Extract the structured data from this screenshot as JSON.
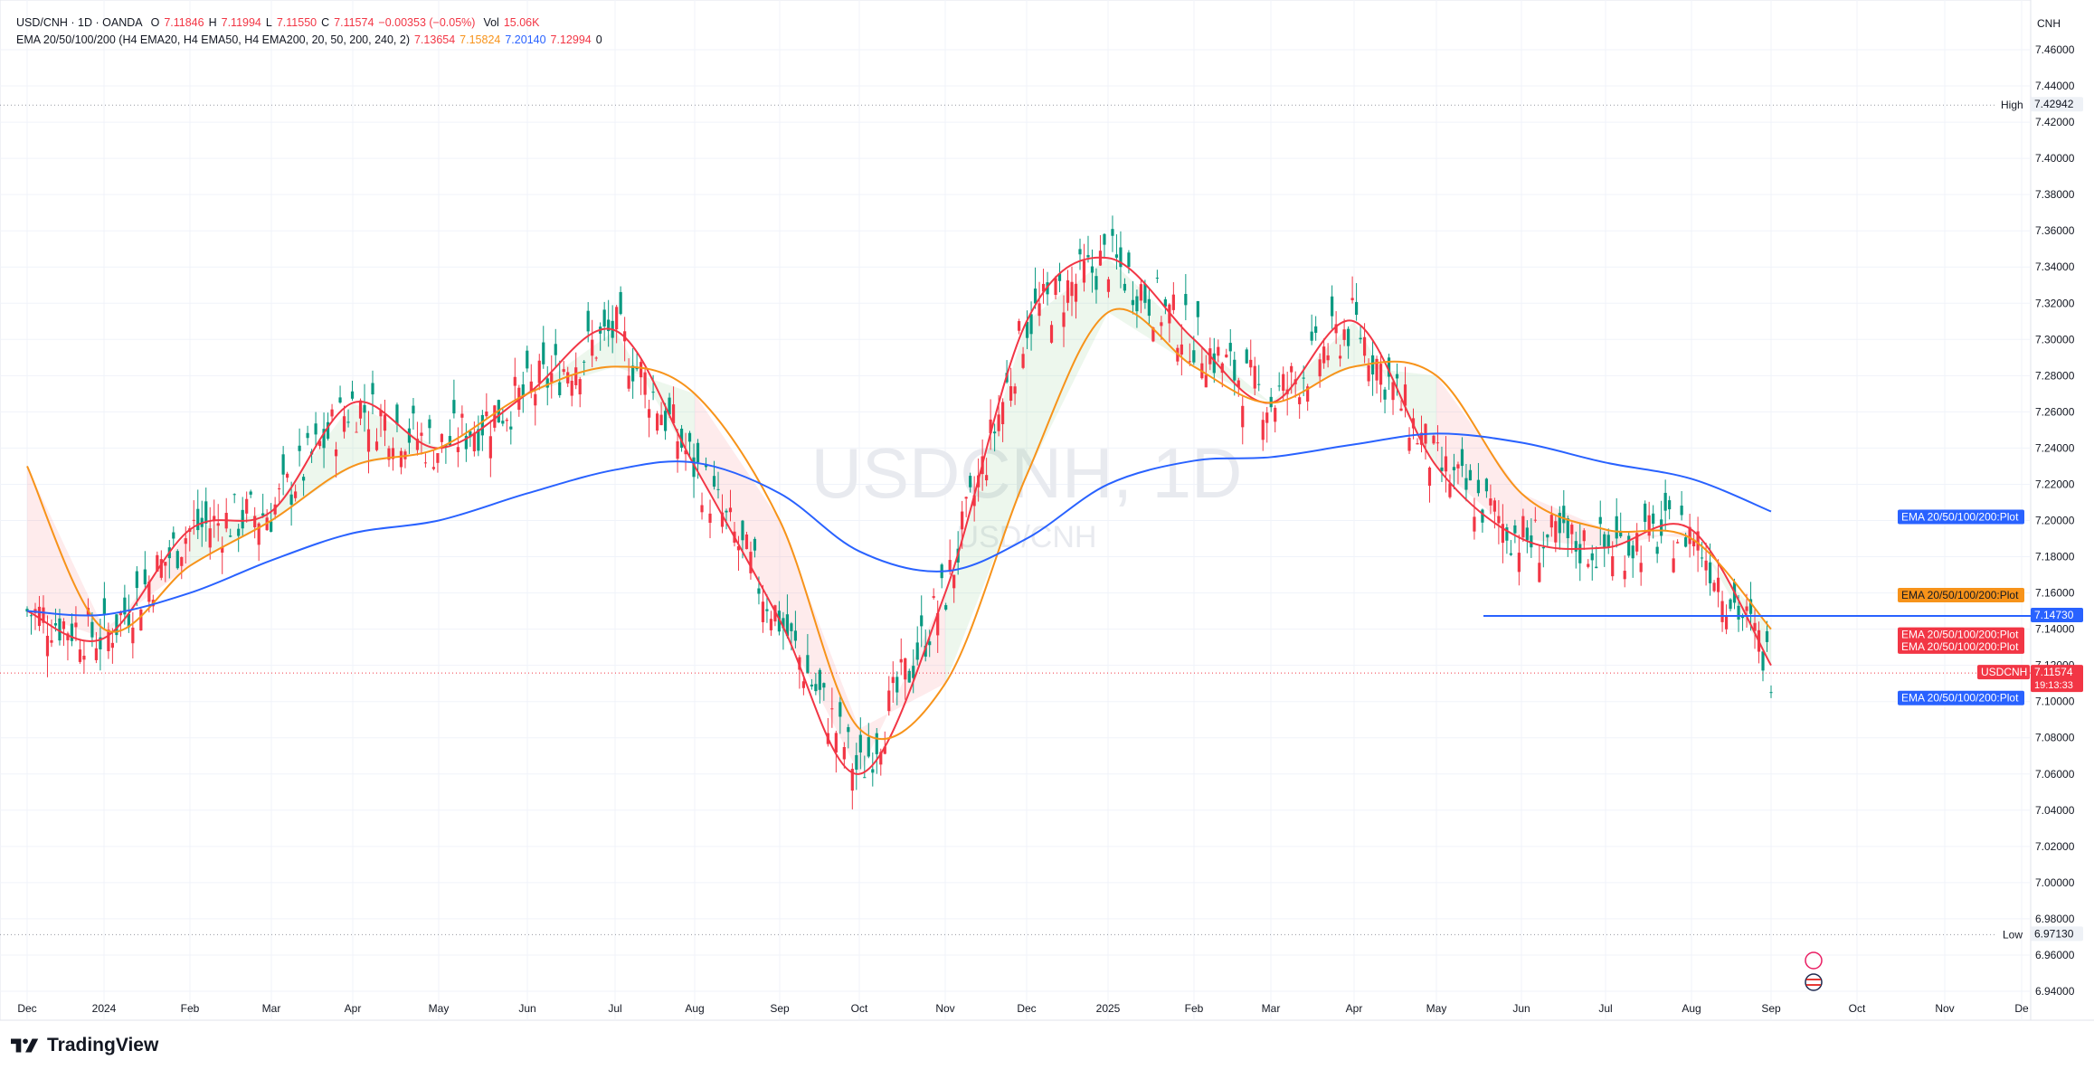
{
  "legend": {
    "symbol": "USD/CNH · 1D · OANDA",
    "open_label": "O",
    "open": "7.11846",
    "high_label": "H",
    "high": "7.11994",
    "low_label": "L",
    "low": "7.11550",
    "close_label": "C",
    "close": "7.11574",
    "change": "−0.00353 (−0.05%)",
    "volume_label": "Vol",
    "volume": "15.06K",
    "indicator": "EMA 20/50/100/200 (H4 EMA20, H4 EMA50, H4 EMA200, 20, 50, 200, 240, 2)",
    "ema20": "7.13654",
    "ema50": "7.15824",
    "ema200": "7.20140",
    "ema_extra": "7.12994",
    "ema_zero": "0"
  },
  "watermark": {
    "main": "USDCNH, 1D",
    "sub": "USD/CNH"
  },
  "currency": "CNH",
  "price_axis": {
    "ticks": [
      "7.46000",
      "7.44000",
      "7.42000",
      "7.40000",
      "7.38000",
      "7.36000",
      "7.34000",
      "7.32000",
      "7.30000",
      "7.28000",
      "7.26000",
      "7.24000",
      "7.22000",
      "7.20000",
      "7.18000",
      "7.16000",
      "7.14000",
      "7.12000",
      "7.10000",
      "7.08000",
      "7.06000",
      "7.04000",
      "7.02000",
      "7.00000",
      "6.98000",
      "6.96000",
      "6.94000"
    ]
  },
  "time_axis": {
    "labels": [
      "Dec",
      "2024",
      "Feb",
      "Mar",
      "Apr",
      "May",
      "Jun",
      "Jul",
      "Aug",
      "Sep",
      "Oct",
      "Nov",
      "Dec",
      "2025",
      "Feb",
      "Mar",
      "Apr",
      "May",
      "Jun",
      "Jul",
      "Aug",
      "Sep",
      "Oct",
      "Nov",
      "De"
    ]
  },
  "markers": {
    "high_label": "High",
    "high_value": "7.42942",
    "low_label": "Low",
    "low_value": "6.97130",
    "hline_value": "7.14730",
    "current_symbol": "USDCNH",
    "current_value": "7.11574",
    "countdown": "19:13:33",
    "ema_tag_blue_top": "EMA 20/50/100/200:Plot",
    "ema_tag_orange": "EMA 20/50/100/200:Plot",
    "ema_tag_red_1": "EMA 20/50/100/200:Plot",
    "ema_tag_red_2": "EMA 20/50/100/200:Plot",
    "ema_tag_blue_bottom": "EMA 20/50/100/200:Plot"
  },
  "chart_data": {
    "type": "line",
    "title": "USD/CNH · 1D · OANDA",
    "x": [
      "Dec",
      "2024",
      "Feb",
      "Mar",
      "Apr",
      "May",
      "Jun",
      "Jul",
      "Aug",
      "Sep",
      "Oct",
      "Nov",
      "Dec",
      "2025",
      "Feb",
      "Mar",
      "Apr",
      "May",
      "Jun",
      "Jul",
      "Aug",
      "Sep"
    ],
    "ylim": [
      6.93,
      7.47
    ],
    "series": [
      {
        "values": [
          7.15,
          7.135,
          7.195,
          7.205,
          7.265,
          7.24,
          7.27,
          7.305,
          7.23,
          7.145,
          7.06,
          7.16,
          7.31,
          7.345,
          7.3,
          7.265,
          7.31,
          7.23,
          7.19,
          7.185,
          7.195,
          7.12
        ]
      },
      {
        "values": [
          7.23,
          7.14,
          7.175,
          7.2,
          7.23,
          7.24,
          7.27,
          7.285,
          7.27,
          7.2,
          7.085,
          7.11,
          7.225,
          7.315,
          7.285,
          7.265,
          7.285,
          7.28,
          7.215,
          7.195,
          7.19,
          7.14
        ]
      },
      {
        "values": [
          7.15,
          7.148,
          7.16,
          7.178,
          7.193,
          7.2,
          7.215,
          7.228,
          7.232,
          7.215,
          7.183,
          7.172,
          7.19,
          7.22,
          7.233,
          7.235,
          7.242,
          7.248,
          7.243,
          7.232,
          7.223,
          7.205
        ]
      }
    ],
    "colors": [
      "#f23645",
      "#f7931a",
      "#2962ff"
    ],
    "high": 7.42942,
    "low": 6.9713,
    "horizontal_line": 7.1473,
    "last": 7.11574,
    "grid": true
  }
}
